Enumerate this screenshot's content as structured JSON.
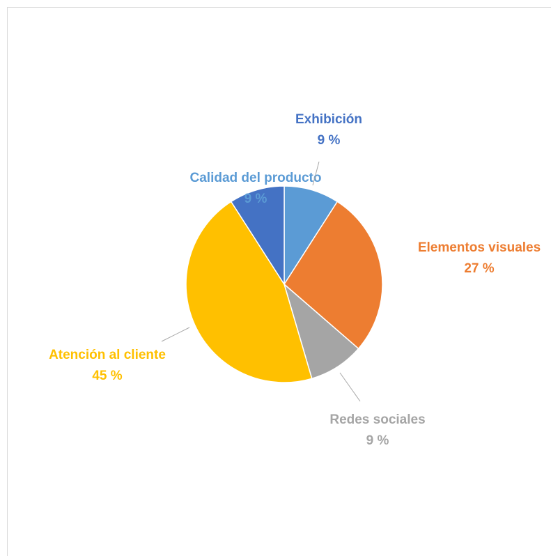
{
  "chart_data": {
    "type": "pie",
    "categories": [
      "Calidad del producto",
      "Elementos visuales",
      "Redes sociales",
      "Atención al cliente",
      "Exhibición"
    ],
    "values": [
      9,
      27,
      9,
      45,
      9
    ],
    "value_labels": [
      "9 %",
      "27 %",
      "9 %",
      "45 %",
      "9 %"
    ],
    "colors": [
      "#5b9bd5",
      "#ed7d31",
      "#a5a5a5",
      "#ffc000",
      "#4472c4"
    ]
  }
}
